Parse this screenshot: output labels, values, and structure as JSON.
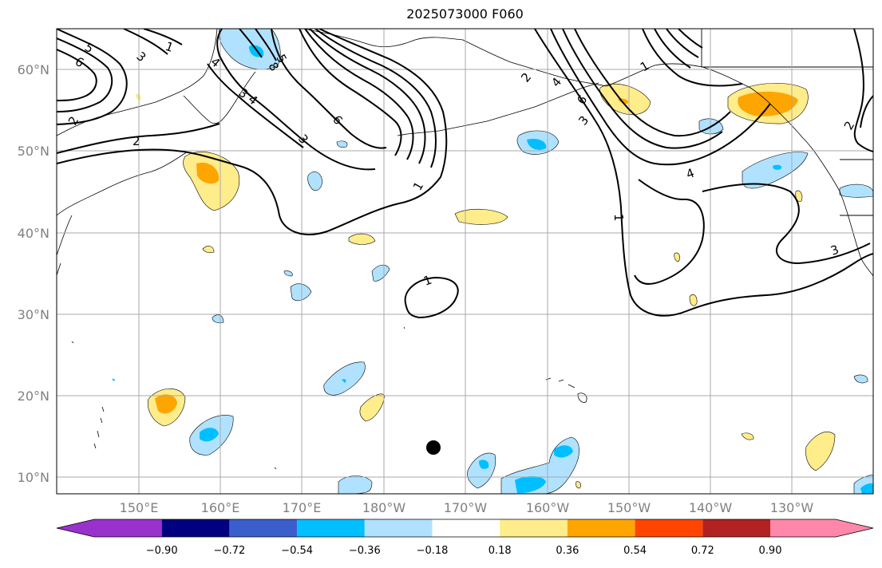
{
  "title": "2025073000 F060",
  "map": {
    "lat_labels": [
      "60°N",
      "50°N",
      "40°N",
      "30°N",
      "20°N",
      "10°N"
    ],
    "lon_labels": [
      "150°E",
      "160°E",
      "170°E",
      "180°W",
      "170°W",
      "160°W",
      "150°W",
      "140°W",
      "130°W"
    ],
    "contour_labels": [
      "5",
      "6",
      "3",
      "1",
      "4",
      "3",
      "5",
      "8",
      "2",
      "4",
      "6",
      "3",
      "2",
      "1",
      "1",
      "1",
      "2",
      "4",
      "6",
      "3",
      "4",
      "1",
      "2",
      "3"
    ],
    "marker": "black dot near 13°N, 174°W"
  },
  "colorbar": {
    "tick_labels": [
      "−0.90",
      "−0.72",
      "−0.54",
      "−0.36",
      "−0.18",
      "0.18",
      "0.36",
      "0.54",
      "0.72",
      "0.90"
    ],
    "colors": [
      "#9932cc",
      "#000080",
      "#3a5fcd",
      "#00bfff",
      "#b0e2ff",
      "#ffffff",
      "#ffec8b",
      "#ffa500",
      "#ff4500",
      "#b22222",
      "#ff88aa"
    ]
  }
}
